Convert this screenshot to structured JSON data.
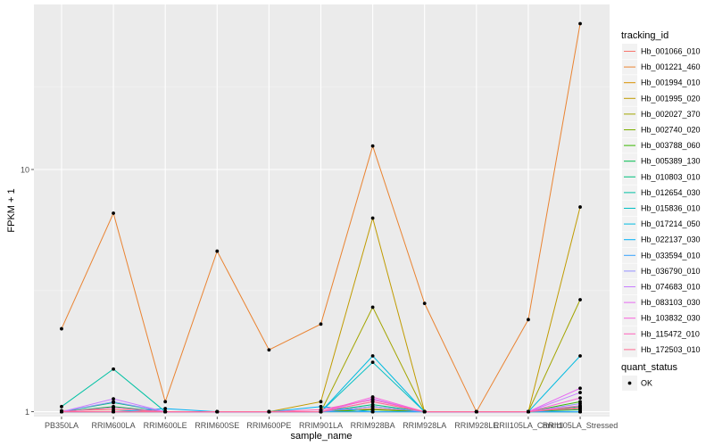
{
  "chart_data": {
    "type": "line",
    "ylog": true,
    "xlabel": "sample_name",
    "ylabel": "FPKM + 1",
    "grid": true,
    "legend_position": "right",
    "categories": [
      "PB350LA",
      "RRIM600LA",
      "RRIM600LE",
      "RRIM600SE",
      "RRIM600PE",
      "RRIM901LA",
      "RRIM928BA",
      "RRIM928LA",
      "RRIM928LE",
      "RRII105LA_Control",
      "RRII105LA_Stressed"
    ],
    "y_ticks": [
      1,
      10
    ],
    "y_tick_labels": [
      "1",
      "10"
    ],
    "ylim": [
      0.955,
      48
    ],
    "legend": {
      "title": "tracking_id",
      "title2": "quant_status",
      "status_items": [
        "OK"
      ]
    },
    "series": [
      {
        "name": "Hb_001066_010",
        "color": "#F8766D",
        "values": [
          1.01,
          1.02,
          1.0,
          1.0,
          1.0,
          1.0,
          1.03,
          1.0,
          1.0,
          1.0,
          1.03
        ]
      },
      {
        "name": "Hb_001221_460",
        "color": "#EA8331",
        "values": [
          2.2,
          6.6,
          1.1,
          4.6,
          1.8,
          2.3,
          12.5,
          2.8,
          1.0,
          2.4,
          40.0
        ]
      },
      {
        "name": "Hb_001994_010",
        "color": "#D89000",
        "values": [
          1.0,
          1.0,
          1.0,
          1.0,
          1.0,
          1.0,
          1.0,
          1.0,
          1.0,
          1.0,
          1.0
        ]
      },
      {
        "name": "Hb_001995_020",
        "color": "#C09B00",
        "values": [
          1.0,
          1.0,
          1.0,
          1.0,
          1.0,
          1.1,
          6.3,
          1.0,
          1.0,
          1.0,
          7.0
        ]
      },
      {
        "name": "Hb_002027_370",
        "color": "#A3A500",
        "values": [
          1.0,
          1.0,
          1.0,
          1.0,
          1.0,
          1.0,
          2.7,
          1.0,
          1.0,
          1.0,
          2.9
        ]
      },
      {
        "name": "Hb_002740_020",
        "color": "#7CAE00",
        "values": [
          1.0,
          1.0,
          1.0,
          1.0,
          1.0,
          1.0,
          1.02,
          1.0,
          1.0,
          1.0,
          1.0
        ]
      },
      {
        "name": "Hb_003788_060",
        "color": "#39B600",
        "values": [
          1.0,
          1.0,
          1.0,
          1.0,
          1.0,
          1.0,
          1.02,
          1.0,
          1.0,
          1.0,
          1.1
        ]
      },
      {
        "name": "Hb_005389_130",
        "color": "#00BB4E",
        "values": [
          1.0,
          1.05,
          1.0,
          1.0,
          1.0,
          1.0,
          1.05,
          1.0,
          1.0,
          1.0,
          1.02
        ]
      },
      {
        "name": "Hb_010803_010",
        "color": "#00BF7D",
        "values": [
          1.0,
          1.09,
          1.0,
          1.0,
          1.0,
          1.0,
          1.07,
          1.0,
          1.0,
          1.0,
          1.05
        ]
      },
      {
        "name": "Hb_012654_030",
        "color": "#00C1A3",
        "values": [
          1.05,
          1.5,
          1.0,
          1.0,
          1.0,
          1.0,
          1.0,
          1.0,
          1.0,
          1.0,
          1.0
        ]
      },
      {
        "name": "Hb_015836_010",
        "color": "#00BFC4",
        "values": [
          1.0,
          1.0,
          1.0,
          1.0,
          1.0,
          1.0,
          1.6,
          1.0,
          1.0,
          1.0,
          1.0
        ]
      },
      {
        "name": "Hb_017214_050",
        "color": "#00BAE0",
        "values": [
          1.0,
          1.0,
          1.0,
          1.0,
          1.0,
          1.0,
          1.7,
          1.0,
          1.0,
          1.0,
          1.7
        ]
      },
      {
        "name": "Hb_022137_030",
        "color": "#00B0F6",
        "values": [
          1.0,
          1.0,
          1.03,
          1.0,
          1.0,
          1.05,
          1.0,
          1.0,
          1.0,
          1.0,
          1.0
        ]
      },
      {
        "name": "Hb_033594_010",
        "color": "#35A2FF",
        "values": [
          1.0,
          1.0,
          1.0,
          1.0,
          1.0,
          1.0,
          1.0,
          1.0,
          1.0,
          1.0,
          1.0
        ]
      },
      {
        "name": "Hb_036790_010",
        "color": "#9590FF",
        "values": [
          1.0,
          1.1,
          1.0,
          1.0,
          1.0,
          1.0,
          1.05,
          1.0,
          1.0,
          1.0,
          1.08
        ]
      },
      {
        "name": "Hb_074683_010",
        "color": "#C77CFF",
        "values": [
          1.0,
          1.13,
          1.0,
          1.0,
          1.0,
          1.0,
          1.13,
          1.0,
          1.0,
          1.0,
          1.2
        ]
      },
      {
        "name": "Hb_083103_030",
        "color": "#E76BF3",
        "values": [
          1.0,
          1.0,
          1.0,
          1.0,
          1.0,
          1.0,
          1.1,
          1.0,
          1.0,
          1.0,
          1.25
        ]
      },
      {
        "name": "Hb_103832_030",
        "color": "#FA62DB",
        "values": [
          1.0,
          1.0,
          1.0,
          1.0,
          1.0,
          1.0,
          1.15,
          1.0,
          1.0,
          1.0,
          1.14
        ]
      },
      {
        "name": "Hb_115472_010",
        "color": "#FF62BC",
        "values": [
          1.0,
          1.04,
          1.0,
          1.0,
          1.0,
          1.02,
          1.12,
          1.0,
          1.0,
          1.0,
          1.06
        ]
      },
      {
        "name": "Hb_172503_010",
        "color": "#FF6C91",
        "values": [
          1.0,
          1.0,
          1.0,
          1.0,
          1.0,
          1.0,
          1.1,
          1.0,
          1.0,
          1.0,
          1.04
        ]
      }
    ]
  }
}
